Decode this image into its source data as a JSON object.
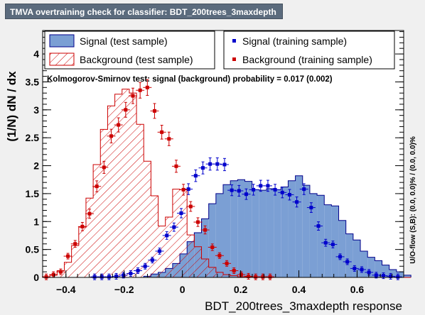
{
  "window": {
    "title": "TMVA overtraining check for classifier: BDT_200trees_3maxdepth"
  },
  "chart_data": {
    "type": "histogram",
    "xlabel": "BDT_200trees_3maxdepth response",
    "ylabel": "(1/N) dN / dx",
    "right_label": "U/O-flow (S,B): (0.0, 0.0)% / (0.0, 0.0)%",
    "annotation": "Kolmogorov-Smirnov test: signal (background) probability = 0.017 (0.002)",
    "xlim": [
      -0.48,
      0.76
    ],
    "ylim": [
      0,
      4.42
    ],
    "x_ticks": [
      {
        "value": -0.4,
        "label": "−0.4"
      },
      {
        "value": -0.2,
        "label": "−0.2"
      },
      {
        "value": 0,
        "label": "0"
      },
      {
        "value": 0.2,
        "label": "0.2"
      },
      {
        "value": 0.4,
        "label": "0.4"
      },
      {
        "value": 0.6,
        "label": "0.6"
      }
    ],
    "y_ticks": [
      {
        "value": 0,
        "label": "0"
      },
      {
        "value": 0.5,
        "label": "0.5"
      },
      {
        "value": 1,
        "label": "1"
      },
      {
        "value": 1.5,
        "label": "1.5"
      },
      {
        "value": 2,
        "label": "2"
      },
      {
        "value": 2.5,
        "label": "2.5"
      },
      {
        "value": 3,
        "label": "3"
      },
      {
        "value": 3.5,
        "label": "3.5"
      },
      {
        "value": 4,
        "label": "4"
      }
    ],
    "bin_edges_start": -0.48,
    "bin_width": 0.0248,
    "legend": [
      {
        "label": "Signal (test sample)",
        "style": "fill",
        "color": "#7b9fd4"
      },
      {
        "label": "Signal (training sample)",
        "style": "marker",
        "color": "#0000cc"
      },
      {
        "label": "Background (test sample)",
        "style": "hatch",
        "color": "#cc0000"
      },
      {
        "label": "Background (training sample)",
        "style": "marker",
        "color": "#cc0000"
      }
    ],
    "series": [
      {
        "name": "Signal (test sample)",
        "kind": "filled-histogram",
        "color": "#7b9fd4",
        "values": [
          0,
          0,
          0,
          0,
          0,
          0,
          0,
          0,
          0,
          0,
          0,
          0,
          0,
          0,
          0.02,
          0.06,
          0.09,
          0.16,
          0.25,
          0.42,
          0.64,
          0.8,
          1.05,
          1.32,
          1.5,
          1.66,
          1.73,
          1.75,
          1.72,
          1.57,
          1.56,
          1.59,
          1.57,
          1.62,
          1.73,
          1.82,
          1.65,
          1.5,
          1.47,
          1.3,
          1.28,
          1.02,
          0.78,
          0.67,
          0.47,
          0.36,
          0.3,
          0.22,
          0.14,
          0.1,
          0.04
        ]
      },
      {
        "name": "Background (test sample)",
        "kind": "hatched-histogram",
        "color": "#cc0000",
        "values": [
          0.01,
          0.04,
          0.12,
          0.27,
          0.57,
          0.9,
          1.42,
          2.02,
          2.65,
          3.07,
          3.28,
          3.37,
          3.3,
          2.74,
          2.08,
          1.46,
          0.92,
          1.08,
          1.58,
          1.57,
          0.76,
          0.55,
          0.33,
          0.18,
          0.09,
          0.05,
          0.03,
          0.01,
          0.01,
          0,
          0,
          0,
          0,
          0,
          0,
          0,
          0,
          0,
          0,
          0,
          0,
          0,
          0,
          0,
          0,
          0,
          0,
          0,
          0,
          0,
          0
        ]
      },
      {
        "name": "Signal (training sample)",
        "kind": "markers",
        "color": "#0000cc",
        "points": [
          {
            "x": -0.3016,
            "y": 0.01
          },
          {
            "x": -0.2768,
            "y": 0.01
          },
          {
            "x": -0.252,
            "y": 0.01
          },
          {
            "x": -0.2272,
            "y": 0.02
          },
          {
            "x": -0.2024,
            "y": 0.04
          },
          {
            "x": -0.1776,
            "y": 0.07
          },
          {
            "x": -0.1528,
            "y": 0.12
          },
          {
            "x": -0.128,
            "y": 0.2
          },
          {
            "x": -0.1032,
            "y": 0.31
          },
          {
            "x": -0.0784,
            "y": 0.47
          },
          {
            "x": -0.0536,
            "y": 0.75
          },
          {
            "x": -0.0288,
            "y": 0.9
          },
          {
            "x": -0.004,
            "y": 1.15
          },
          {
            "x": 0.0208,
            "y": 1.58
          },
          {
            "x": 0.0456,
            "y": 1.82
          },
          {
            "x": 0.0704,
            "y": 1.96
          },
          {
            "x": 0.0952,
            "y": 2.03
          },
          {
            "x": 0.12,
            "y": 2.03
          },
          {
            "x": 0.1448,
            "y": 2.02
          },
          {
            "x": 0.1696,
            "y": 1.56
          },
          {
            "x": 0.1944,
            "y": 1.55
          },
          {
            "x": 0.2192,
            "y": 1.49
          },
          {
            "x": 0.244,
            "y": 1.57
          },
          {
            "x": 0.2688,
            "y": 1.64
          },
          {
            "x": 0.2936,
            "y": 1.64
          },
          {
            "x": 0.3184,
            "y": 1.57
          },
          {
            "x": 0.3432,
            "y": 1.52
          },
          {
            "x": 0.368,
            "y": 1.48
          },
          {
            "x": 0.3928,
            "y": 1.35
          },
          {
            "x": 0.4176,
            "y": 1.58
          },
          {
            "x": 0.4424,
            "y": 1.25
          },
          {
            "x": 0.4672,
            "y": 0.92
          },
          {
            "x": 0.492,
            "y": 0.62
          },
          {
            "x": 0.5168,
            "y": 0.59
          },
          {
            "x": 0.5416,
            "y": 0.37
          },
          {
            "x": 0.5664,
            "y": 0.28
          },
          {
            "x": 0.5912,
            "y": 0.16
          },
          {
            "x": 0.616,
            "y": 0.14
          },
          {
            "x": 0.6408,
            "y": 0.09
          },
          {
            "x": 0.6656,
            "y": 0.04
          },
          {
            "x": 0.6904,
            "y": 0.03
          },
          {
            "x": 0.7152,
            "y": 0.02
          },
          {
            "x": 0.74,
            "y": 0.01
          }
        ]
      },
      {
        "name": "Background (training sample)",
        "kind": "markers",
        "color": "#cc0000",
        "points": [
          {
            "x": -0.4676,
            "y": 0.01
          },
          {
            "x": -0.4428,
            "y": 0.05
          },
          {
            "x": -0.418,
            "y": 0.1
          },
          {
            "x": -0.3932,
            "y": 0.38
          },
          {
            "x": -0.3684,
            "y": 0.6
          },
          {
            "x": -0.3436,
            "y": 0.91
          },
          {
            "x": -0.3188,
            "y": 1.14
          },
          {
            "x": -0.294,
            "y": 1.63
          },
          {
            "x": -0.2692,
            "y": 1.97
          },
          {
            "x": -0.2444,
            "y": 2.53
          },
          {
            "x": -0.2196,
            "y": 2.73
          },
          {
            "x": -0.1948,
            "y": 3.0
          },
          {
            "x": -0.17,
            "y": 3.25
          },
          {
            "x": -0.1452,
            "y": 3.35
          },
          {
            "x": -0.1204,
            "y": 3.4
          },
          {
            "x": -0.0956,
            "y": 2.98
          },
          {
            "x": -0.0708,
            "y": 2.6
          },
          {
            "x": -0.046,
            "y": 2.48
          },
          {
            "x": -0.0212,
            "y": 1.99
          },
          {
            "x": 0.0036,
            "y": 1.57
          },
          {
            "x": 0.0284,
            "y": 1.27
          },
          {
            "x": 0.0532,
            "y": 0.99
          },
          {
            "x": 0.078,
            "y": 0.85
          },
          {
            "x": 0.1028,
            "y": 0.54
          },
          {
            "x": 0.1276,
            "y": 0.39
          },
          {
            "x": 0.1524,
            "y": 0.25
          },
          {
            "x": 0.1772,
            "y": 0.12
          },
          {
            "x": 0.202,
            "y": 0.05
          },
          {
            "x": 0.2268,
            "y": 0.02
          },
          {
            "x": 0.2516,
            "y": 0.01
          },
          {
            "x": 0.2764,
            "y": 0.01
          },
          {
            "x": 0.3012,
            "y": 0.01
          }
        ]
      }
    ]
  }
}
